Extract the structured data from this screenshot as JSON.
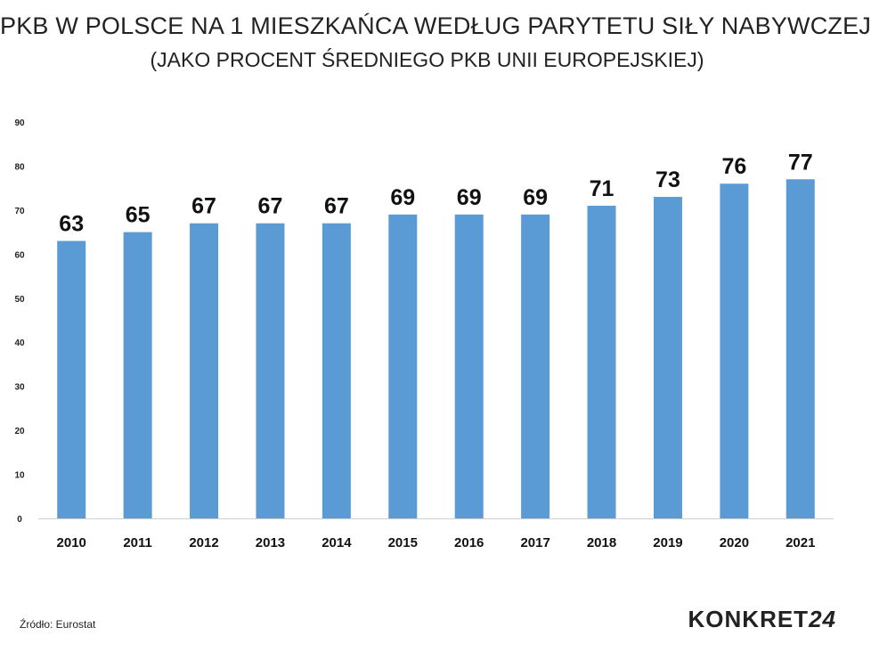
{
  "header": {
    "title": "PKB W POLSCE NA 1 MIESZKAŃCA WEDŁUG PARYTETU SIŁY NABYWCZEJ",
    "subtitle": "(JAKO PROCENT ŚREDNIEGO PKB UNII EUROPEJSKIEJ)"
  },
  "footer": {
    "source": "Źródło: Eurostat",
    "logo_text": "KONKRET",
    "logo_num": "24"
  },
  "chart_data": {
    "type": "bar",
    "categories": [
      "2010",
      "2011",
      "2012",
      "2013",
      "2014",
      "2015",
      "2016",
      "2017",
      "2018",
      "2019",
      "2020",
      "2021"
    ],
    "values": [
      63,
      65,
      67,
      67,
      67,
      69,
      69,
      69,
      71,
      73,
      76,
      77
    ],
    "ylim": [
      0,
      90
    ],
    "yticks": [
      0,
      10,
      20,
      30,
      40,
      50,
      60,
      70,
      80,
      90
    ],
    "grid": false,
    "bar_color": "#5b9bd5",
    "data_labels": true
  }
}
